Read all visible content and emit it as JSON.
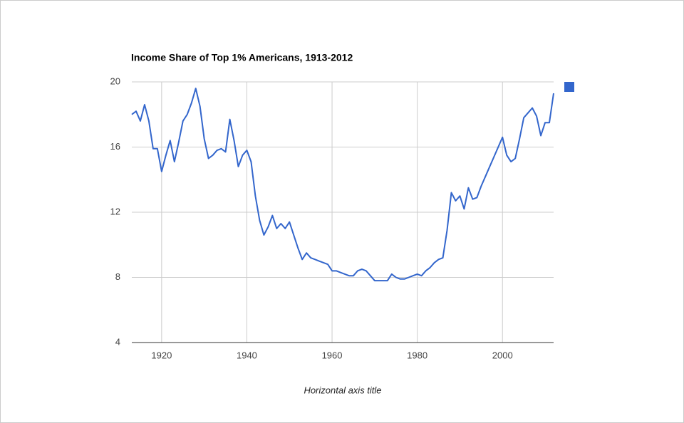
{
  "chart_data": {
    "type": "line",
    "title": "Income Share of Top 1% Americans, 1913-2012",
    "x_label": "Horizontal axis title",
    "x": [
      1913,
      1914,
      1915,
      1916,
      1917,
      1918,
      1919,
      1920,
      1921,
      1922,
      1923,
      1924,
      1925,
      1926,
      1927,
      1928,
      1929,
      1930,
      1931,
      1932,
      1933,
      1934,
      1935,
      1936,
      1937,
      1938,
      1939,
      1940,
      1941,
      1942,
      1943,
      1944,
      1945,
      1946,
      1947,
      1948,
      1949,
      1950,
      1951,
      1952,
      1953,
      1954,
      1955,
      1956,
      1957,
      1958,
      1959,
      1960,
      1961,
      1962,
      1963,
      1964,
      1965,
      1966,
      1967,
      1968,
      1969,
      1970,
      1971,
      1972,
      1973,
      1974,
      1975,
      1976,
      1977,
      1978,
      1979,
      1980,
      1981,
      1982,
      1983,
      1984,
      1985,
      1986,
      1987,
      1988,
      1989,
      1990,
      1991,
      1992,
      1993,
      1994,
      1995,
      1996,
      1997,
      1998,
      1999,
      2000,
      2001,
      2002,
      2003,
      2004,
      2005,
      2006,
      2007,
      2008,
      2009,
      2010,
      2011,
      2012
    ],
    "series": [
      {
        "color": "#3366cc",
        "values": [
          18.0,
          18.2,
          17.6,
          18.6,
          17.6,
          15.9,
          15.9,
          14.5,
          15.5,
          16.4,
          15.1,
          16.3,
          17.6,
          18.0,
          18.7,
          19.6,
          18.5,
          16.5,
          15.3,
          15.5,
          15.8,
          15.9,
          15.7,
          17.7,
          16.4,
          14.8,
          15.5,
          15.8,
          15.1,
          13.0,
          11.5,
          10.6,
          11.1,
          11.8,
          11.0,
          11.3,
          11.0,
          11.4,
          10.6,
          9.8,
          9.1,
          9.5,
          9.2,
          9.1,
          9.0,
          8.9,
          8.8,
          8.4,
          8.4,
          8.3,
          8.2,
          8.1,
          8.1,
          8.4,
          8.5,
          8.4,
          8.1,
          7.8,
          7.8,
          7.8,
          7.8,
          8.2,
          8.0,
          7.9,
          7.9,
          8.0,
          8.1,
          8.2,
          8.1,
          8.4,
          8.6,
          8.9,
          9.1,
          9.2,
          10.9,
          13.2,
          12.7,
          13.0,
          12.2,
          13.5,
          12.8,
          12.9,
          13.6,
          14.2,
          14.8,
          15.4,
          16.0,
          16.6,
          15.5,
          15.1,
          15.3,
          16.5,
          17.8,
          18.1,
          18.4,
          17.9,
          16.7,
          17.5,
          17.5,
          19.3
        ]
      }
    ],
    "xlim": [
      1913,
      2012
    ],
    "xticks": [
      1920,
      1940,
      1960,
      1980,
      2000
    ],
    "ylim": [
      4,
      20
    ],
    "yticks": [
      4,
      8,
      12,
      16,
      20
    ],
    "grid": true,
    "legend": "right"
  }
}
